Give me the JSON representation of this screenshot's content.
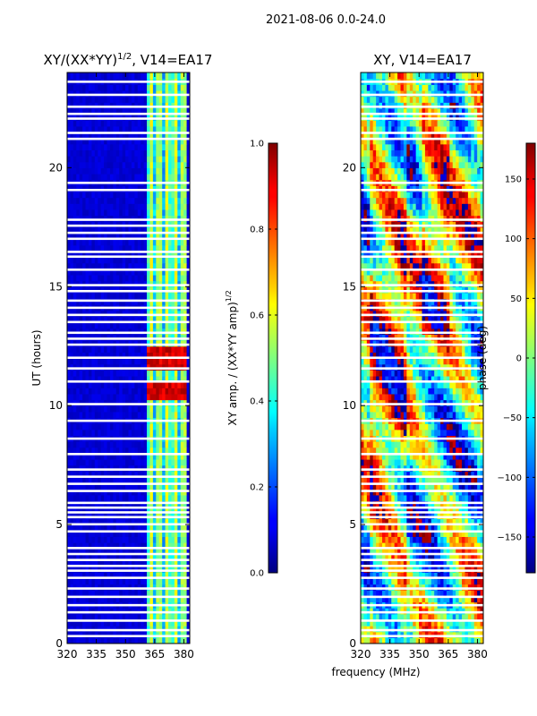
{
  "figure": {
    "suptitle": "2021-08-06 0.0-24.0",
    "shared_xlabel": "frequency (MHz)",
    "shared_ylabel": "UT (hours)"
  },
  "chart_data": [
    {
      "type": "heatmap",
      "title_prefix": "XY/(XX*YY)",
      "title_exponent": "1/2",
      "title_suffix": ", V14=EA17",
      "xlabel": "frequency (MHz)",
      "ylabel": "UT (hours)",
      "xlim": [
        320,
        383
      ],
      "ylim": [
        0,
        24
      ],
      "xticks": [
        320,
        335,
        350,
        365,
        380
      ],
      "yticks": [
        0,
        5,
        10,
        15,
        20
      ],
      "colorbar": {
        "label_prefix": "XY amp. / (XX*YY amp)",
        "label_exponent": "1/2",
        "range": [
          0.0,
          1.0
        ],
        "ticks": [
          "0.0",
          "0.2",
          "0.4",
          "0.6",
          "0.8",
          "1.0"
        ],
        "tick_values": [
          0.0,
          0.2,
          0.4,
          0.6,
          0.8,
          1.0
        ]
      },
      "description_values": "Mostly low normalized amplitude (~0.05) across 320-360 MHz; vertical bands of elevated amplitude (0.3-0.7) between ~361-381 MHz; peaks ~0.9 near 361-381 MHz at UT ~10.5 and ~12",
      "gap_hours": [
        0.3,
        0.55,
        0.95,
        1.3,
        1.6,
        1.95,
        2.3,
        2.75,
        3.05,
        3.25,
        3.5,
        3.75,
        4.0,
        4.7,
        5.0,
        5.3,
        5.5,
        5.7,
        5.9,
        6.4,
        6.7,
        7.0,
        7.3,
        7.95,
        8.6,
        9.35,
        10.05,
        11.0,
        11.55,
        12.0,
        12.55,
        12.8,
        13.05,
        13.5,
        13.8,
        14.1,
        14.4,
        14.8,
        15.05,
        15.7,
        16.25,
        16.45,
        17.0,
        17.25,
        17.55,
        17.8,
        19.05,
        19.35,
        21.2,
        21.45,
        22.05,
        22.25,
        22.55,
        23.05,
        23.6
      ]
    },
    {
      "type": "heatmap",
      "title": "XY, V14=EA17",
      "xlabel": "frequency (MHz)",
      "ylabel": "",
      "xlim": [
        320,
        383
      ],
      "ylim": [
        0,
        24
      ],
      "xticks": [
        320,
        335,
        350,
        365,
        380
      ],
      "yticks": [
        0,
        5,
        10,
        15,
        20
      ],
      "colorbar": {
        "label": "phase (deg)",
        "range": [
          -180,
          180
        ],
        "ticks": [
          "150",
          "100",
          "50",
          "0",
          "−50",
          "−100",
          "−150"
        ],
        "tick_values": [
          150,
          100,
          50,
          0,
          -50,
          -100,
          -150
        ]
      },
      "description_values": "Phase varies across full range -180 to 180 deg; broad warm (positive phase ~100-180) region 325-345 MHz and near 355-365 MHz at later UT; mixed bands elsewhere",
      "gap_hours": [
        0.3,
        0.55,
        0.95,
        1.3,
        1.6,
        1.95,
        2.3,
        2.75,
        3.05,
        3.25,
        3.5,
        3.75,
        4.0,
        4.7,
        5.0,
        5.3,
        5.5,
        5.7,
        5.9,
        6.4,
        6.7,
        7.0,
        7.3,
        7.95,
        8.6,
        9.35,
        10.05,
        11.0,
        11.55,
        12.0,
        12.55,
        12.8,
        13.05,
        13.5,
        13.8,
        14.1,
        14.4,
        14.8,
        15.05,
        15.7,
        16.25,
        16.45,
        17.0,
        17.25,
        17.55,
        17.8,
        19.05,
        19.35,
        21.2,
        21.45,
        22.05,
        22.25,
        22.55,
        23.05,
        23.6
      ]
    }
  ]
}
